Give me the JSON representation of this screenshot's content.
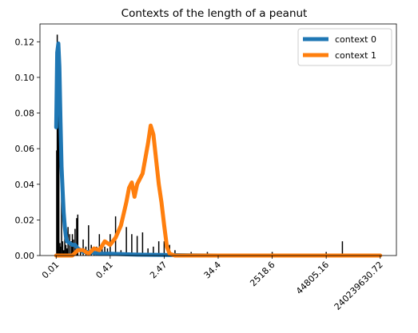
{
  "chart_data": {
    "type": "line",
    "title": "Contexts of the length of a peanut",
    "xlabel": "",
    "ylabel": "",
    "x_ticks": [
      "0.01",
      "0.41",
      "2.47",
      "34.4",
      "2518.6",
      "44805.16",
      "240239630.72"
    ],
    "y_ticks": [
      "0.00",
      "0.02",
      "0.04",
      "0.06",
      "0.08",
      "0.10",
      "0.12"
    ],
    "ylim": [
      0,
      0.13
    ],
    "x_scale": "log-like (labels at irregular values)",
    "legend_position": "top-right",
    "series": [
      {
        "name": "context 0",
        "color": "#1f77b4",
        "x": [
          0.0,
          0.02,
          0.04,
          0.06,
          0.08,
          0.1,
          0.12,
          0.14,
          0.16,
          0.18,
          0.2,
          0.25,
          0.3,
          0.35,
          0.4,
          0.5,
          0.6,
          0.8,
          1.0,
          1.5,
          2.0,
          2.5,
          3.0
        ],
        "y": [
          0.072,
          0.114,
          0.119,
          0.106,
          0.075,
          0.05,
          0.036,
          0.024,
          0.016,
          0.011,
          0.008,
          0.007,
          0.006,
          0.006,
          0.004,
          0.002,
          0.002,
          0.001,
          0.001,
          0.0005,
          0.0003,
          0.0001,
          0.0
        ]
      },
      {
        "name": "context 1",
        "color": "#ff7f0e",
        "x": [
          0.0,
          0.3,
          0.4,
          0.5,
          0.6,
          0.7,
          0.8,
          0.9,
          1.0,
          1.1,
          1.2,
          1.3,
          1.35,
          1.4,
          1.45,
          1.5,
          1.6,
          1.7,
          1.75,
          1.8,
          1.9,
          1.95,
          2.0,
          2.05,
          2.1,
          2.2,
          2.3,
          2.4,
          2.6,
          3.0,
          4.0,
          5.0,
          6.0
        ],
        "y": [
          0.0,
          0.0,
          0.003,
          0.003,
          0.001,
          0.004,
          0.003,
          0.008,
          0.006,
          0.01,
          0.017,
          0.03,
          0.038,
          0.041,
          0.033,
          0.04,
          0.046,
          0.063,
          0.073,
          0.068,
          0.04,
          0.03,
          0.017,
          0.005,
          0.001,
          0.0,
          0.0,
          0.0,
          0.0,
          0.0,
          0.0,
          0.0,
          0.0
        ]
      }
    ],
    "bars": {
      "color": "#000000",
      "x": [
        0.01,
        0.02,
        0.03,
        0.04,
        0.05,
        0.06,
        0.07,
        0.08,
        0.1,
        0.12,
        0.14,
        0.16,
        0.18,
        0.2,
        0.22,
        0.25,
        0.28,
        0.3,
        0.32,
        0.35,
        0.38,
        0.4,
        0.45,
        0.5,
        0.55,
        0.6,
        0.65,
        0.7,
        0.75,
        0.8,
        0.85,
        0.9,
        0.95,
        1.0,
        1.1,
        1.2,
        1.3,
        1.4,
        1.5,
        1.6,
        1.7,
        1.8,
        1.9,
        2.0,
        2.1,
        2.2,
        2.3,
        2.5,
        2.8,
        3.2,
        3.5,
        4.0,
        4.5,
        5.0,
        5.3,
        5.6
      ],
      "y": [
        0.059,
        0.124,
        0.12,
        0.014,
        0.087,
        0.003,
        0.007,
        0.005,
        0.062,
        0.008,
        0.003,
        0.018,
        0.006,
        0.004,
        0.016,
        0.012,
        0.008,
        0.012,
        0.009,
        0.015,
        0.021,
        0.023,
        0.003,
        0.009,
        0.005,
        0.017,
        0.006,
        0.003,
        0.005,
        0.012,
        0.007,
        0.005,
        0.004,
        0.012,
        0.022,
        0.003,
        0.016,
        0.012,
        0.011,
        0.013,
        0.004,
        0.005,
        0.008,
        0.008,
        0.006,
        0.003,
        0.001,
        0.002,
        0.002,
        0.001,
        0.001,
        0.002,
        0.001,
        0.002,
        0.008,
        0.001
      ]
    }
  }
}
